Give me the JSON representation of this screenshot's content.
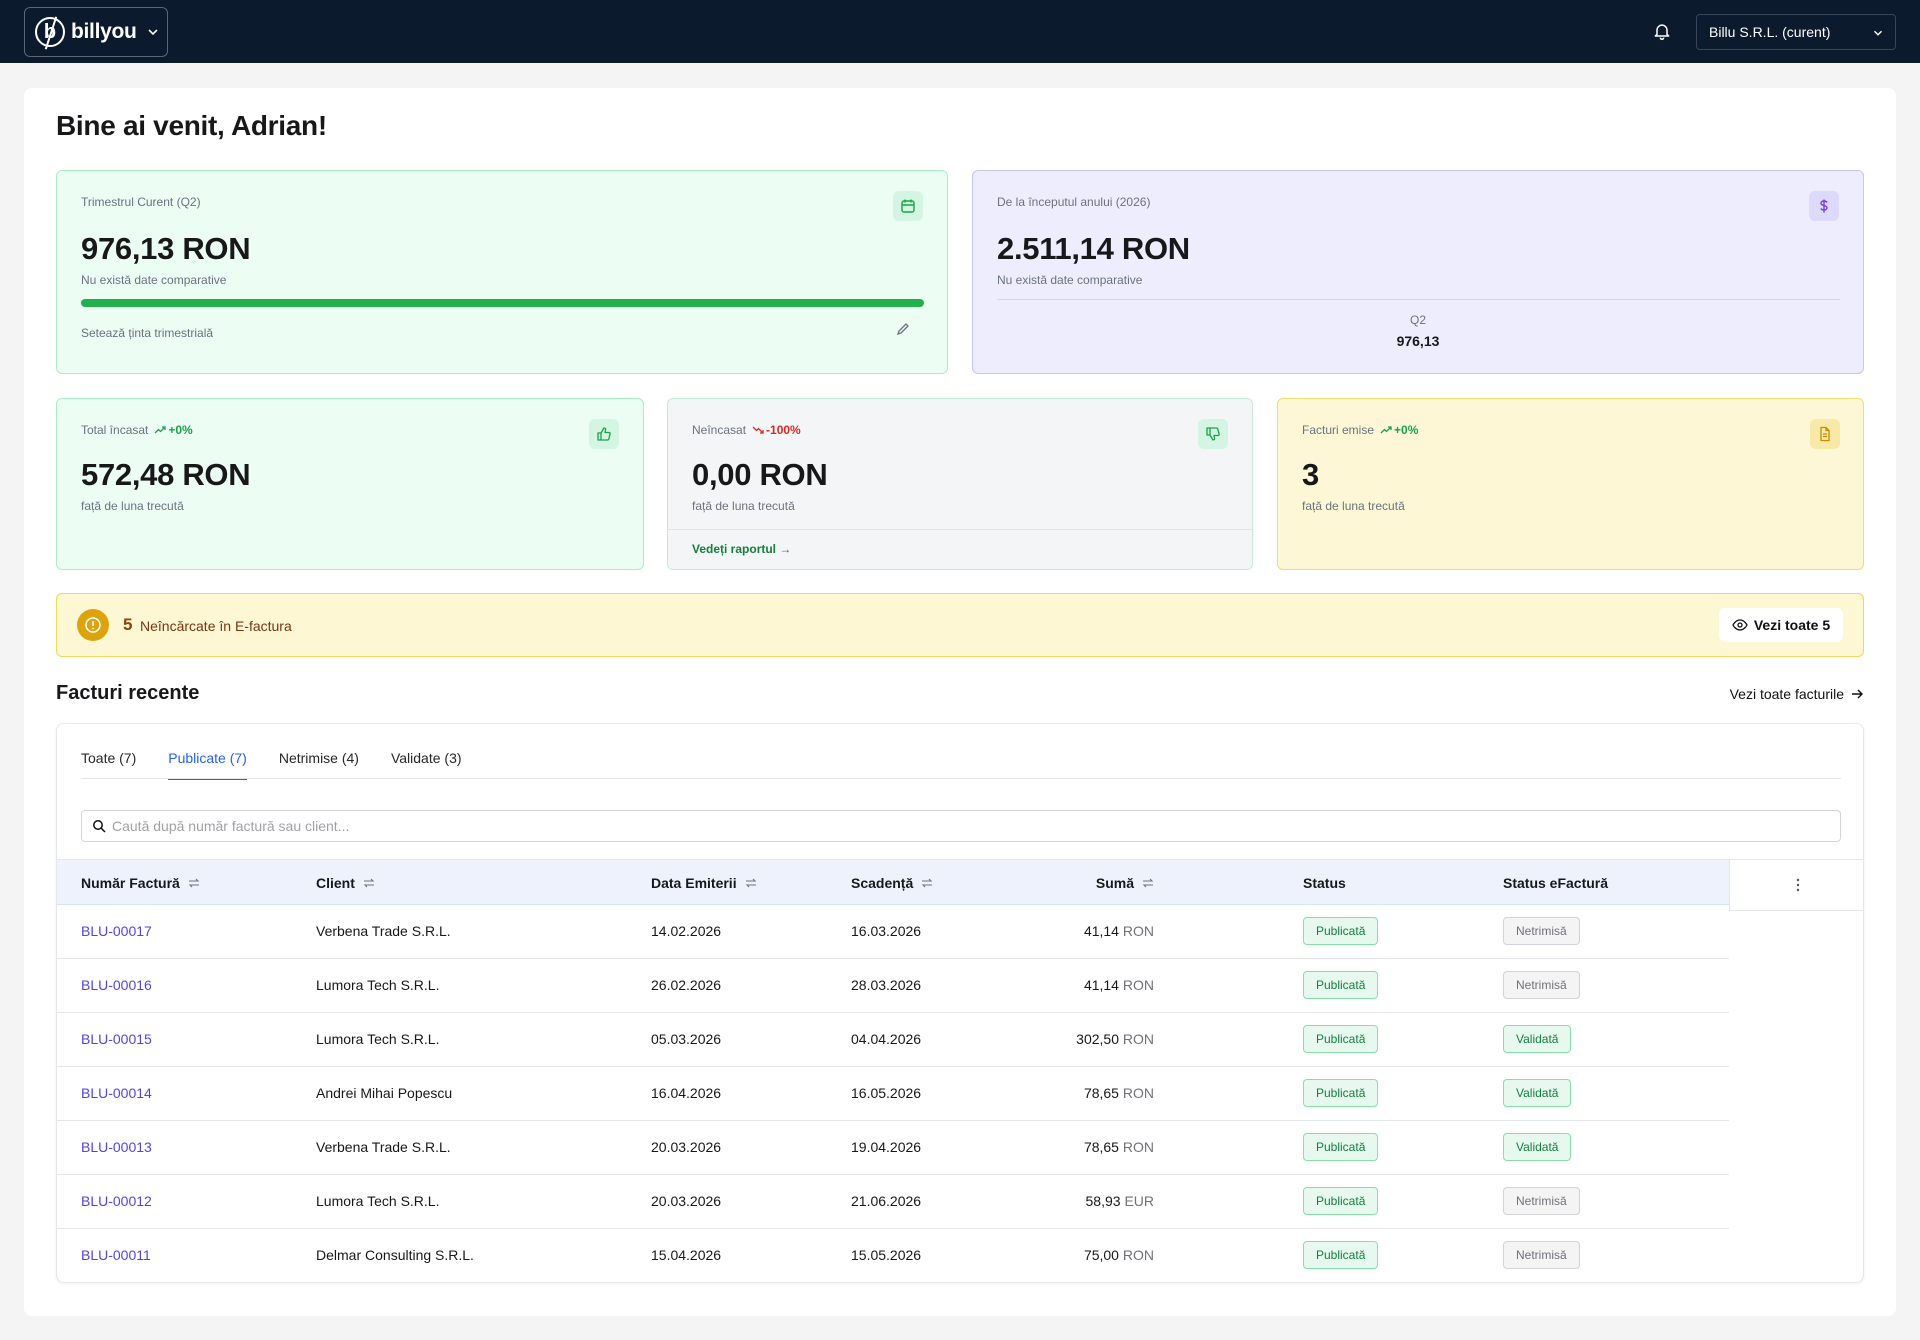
{
  "header": {
    "logo_letter": "b",
    "logo_text": "billyou",
    "company": "Billu S.R.L. (curent)"
  },
  "welcome": "Bine ai venit, Adrian!",
  "quarter_card": {
    "label": "Trimestrul Curent (Q2)",
    "value": "976,13 RON",
    "sub": "Nu există date comparative",
    "progress_fraction": 1.0,
    "target_label": "Setează ținta trimestrială"
  },
  "year_card": {
    "label": "De la începutul anului (2026)",
    "value": "2.511,14 RON",
    "sub": "Nu există date comparative",
    "quarter_name": "Q2",
    "quarter_value": "976,13"
  },
  "collected_card": {
    "label": "Total încasat",
    "change": "+0%",
    "value": "572,48 RON",
    "sub": "față de luna trecută"
  },
  "uncollected_card": {
    "label": "Neîncasat",
    "change": "-100%",
    "value": "0,00 RON",
    "sub": "față de luna trecută",
    "link": "Vedeți raportul →"
  },
  "invoices_card": {
    "label": "Facturi emise",
    "change": "+0%",
    "value": "3",
    "sub": "față de luna trecută"
  },
  "alert": {
    "count": "5",
    "text": "Neîncărcate în E-factura",
    "button": "Vezi toate 5"
  },
  "recent": {
    "title": "Facturi recente",
    "see_all": "Vezi toate facturile",
    "tabs": [
      "Toate (7)",
      "Publicate (7)",
      "Netrimise (4)",
      "Validate (3)"
    ],
    "active_tab": 1,
    "search_placeholder": "Caută după număr factură sau client...",
    "columns": [
      "Număr Factură",
      "Client",
      "Data Emiterii",
      "Scadență",
      "Sumă",
      "Status",
      "Status eFactură"
    ],
    "rows": [
      {
        "number": "BLU-00017",
        "client": "Verbena Trade S.R.L.",
        "issued": "14.02.2026",
        "due": "16.03.2026",
        "amount": "41,14",
        "currency": "RON",
        "status": "Publicată",
        "efactura": "Netrimisă",
        "ef_type": "net"
      },
      {
        "number": "BLU-00016",
        "client": "Lumora Tech S.R.L.",
        "issued": "26.02.2026",
        "due": "28.03.2026",
        "amount": "41,14",
        "currency": "RON",
        "status": "Publicată",
        "efactura": "Netrimisă",
        "ef_type": "net"
      },
      {
        "number": "BLU-00015",
        "client": "Lumora Tech S.R.L.",
        "issued": "05.03.2026",
        "due": "04.04.2026",
        "amount": "302,50",
        "currency": "RON",
        "status": "Publicată",
        "efactura": "Validată",
        "ef_type": "val"
      },
      {
        "number": "BLU-00014",
        "client": "Andrei Mihai Popescu",
        "issued": "16.04.2026",
        "due": "16.05.2026",
        "amount": "78,65",
        "currency": "RON",
        "status": "Publicată",
        "efactura": "Validată",
        "ef_type": "val"
      },
      {
        "number": "BLU-00013",
        "client": "Verbena Trade S.R.L.",
        "issued": "20.03.2026",
        "due": "19.04.2026",
        "amount": "78,65",
        "currency": "RON",
        "status": "Publicată",
        "efactura": "Validată",
        "ef_type": "val"
      },
      {
        "number": "BLU-00012",
        "client": "Lumora Tech S.R.L.",
        "issued": "20.03.2026",
        "due": "21.06.2026",
        "amount": "58,93",
        "currency": "EUR",
        "status": "Publicată",
        "efactura": "Netrimisă",
        "ef_type": "net"
      },
      {
        "number": "BLU-00011",
        "client": "Delmar Consulting S.R.L.",
        "issued": "15.04.2026",
        "due": "15.05.2026",
        "amount": "75,00",
        "currency": "RON",
        "status": "Publicată",
        "efactura": "Netrimisă",
        "ef_type": "net"
      }
    ]
  },
  "colors": {
    "topbar": "#0c1a2e",
    "green_card": "#ecfdf3",
    "purple_card": "#eeedfd",
    "yellow_card": "#fdf7d6",
    "link": "#4f46e5",
    "tab_active": "#2563eb",
    "progress": "#22b14c"
  },
  "icons": {
    "bell": "bell-icon",
    "calendar": "calendar-icon",
    "dollar": "dollar-icon",
    "thumbs_up": "thumbs-up-icon",
    "thumbs_down": "thumbs-down-icon",
    "document": "document-icon",
    "alert": "alert-circle-icon",
    "eye": "eye-icon",
    "search": "search-icon",
    "sort": "sort-icon",
    "kebab": "kebab-menu-icon"
  }
}
